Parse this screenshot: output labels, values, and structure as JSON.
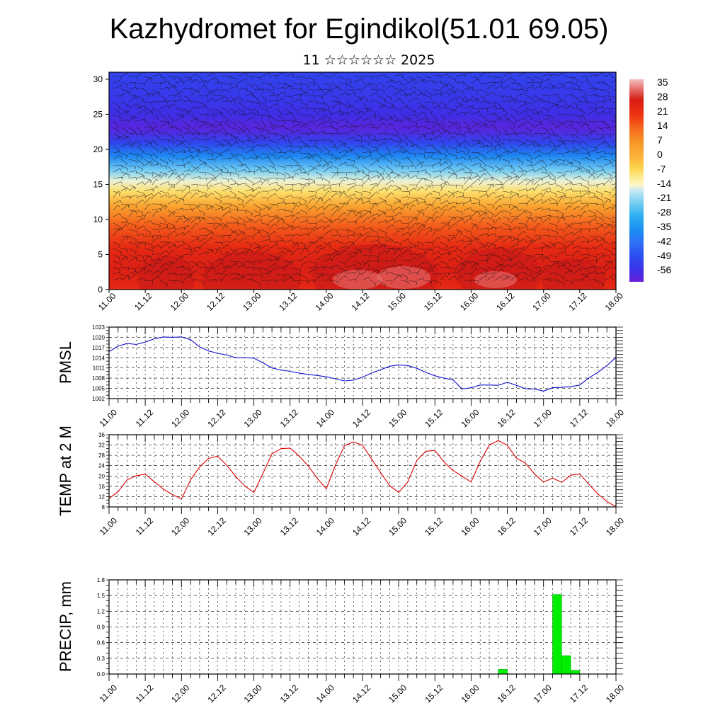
{
  "header": {
    "title": "Kazhydromet for Egindikol(51.01 69.05)",
    "subtitle": "11 ☆☆☆☆☆☆ 2025"
  },
  "time_labels": [
    "11.00",
    "11.12",
    "12.00",
    "12.12",
    "13.00",
    "13.12",
    "14.00",
    "14.12",
    "15.00",
    "15.12",
    "16.00",
    "16.12",
    "17.00",
    "17.12",
    "18.00"
  ],
  "chart_data": [
    {
      "type": "heatmap",
      "name": "cross-section",
      "x_tick_labels": [
        "11.00",
        "11.12",
        "12.00",
        "12.12",
        "13.00",
        "13.12",
        "14.00",
        "14.12",
        "15.00",
        "15.12",
        "16.00",
        "16.12",
        "17.00",
        "17.12",
        "18.00"
      ],
      "y_ticks": [
        0,
        5,
        10,
        15,
        20,
        25,
        30
      ],
      "ylim": [
        0,
        31
      ],
      "colorbar_ticks": [
        35,
        28,
        21,
        14,
        7,
        0,
        -7,
        -14,
        -21,
        -28,
        -35,
        -42,
        -49,
        -56
      ],
      "colorbar_range": [
        -60,
        38
      ],
      "vertical_profile": [
        {
          "z": 0,
          "t": 24
        },
        {
          "z": 3,
          "t": 27
        },
        {
          "z": 6,
          "t": 24
        },
        {
          "z": 9,
          "t": 16
        },
        {
          "z": 12,
          "t": 4
        },
        {
          "z": 14,
          "t": -7
        },
        {
          "z": 15.5,
          "t": -14
        },
        {
          "z": 17,
          "t": -22
        },
        {
          "z": 19,
          "t": -36
        },
        {
          "z": 21,
          "t": -50
        },
        {
          "z": 23,
          "t": -58
        },
        {
          "z": 25,
          "t": -55
        },
        {
          "z": 28,
          "t": -52
        },
        {
          "z": 31,
          "t": -50
        }
      ]
    },
    {
      "type": "line",
      "name": "pmsl",
      "ylabel": "PMSL",
      "color": "#1111cc",
      "ylim": [
        1002,
        1023
      ],
      "y_ticks": [
        1002,
        1005,
        1008,
        1011,
        1014,
        1017,
        1020,
        1023
      ],
      "x_hours": [
        0,
        3,
        6,
        9,
        12,
        15,
        18,
        21,
        24,
        27,
        30,
        33,
        36,
        39,
        42,
        45,
        48,
        51,
        54,
        57,
        60,
        63,
        66,
        69,
        72,
        75,
        78,
        81,
        84,
        87,
        90,
        93,
        96,
        99,
        102,
        105,
        108,
        111,
        114,
        117,
        120,
        123,
        126,
        129,
        132,
        135,
        138,
        141,
        144,
        147,
        150,
        153,
        156,
        159,
        162,
        165,
        168
      ],
      "values": [
        1015.8,
        1017.4,
        1018.2,
        1017.9,
        1018.6,
        1019.6,
        1020.1,
        1020.0,
        1020.1,
        1019.3,
        1017.2,
        1016.0,
        1015.3,
        1014.8,
        1014.0,
        1014.0,
        1013.9,
        1012.5,
        1011.0,
        1010.4,
        1010.0,
        1009.5,
        1009.1,
        1008.8,
        1008.4,
        1007.8,
        1007.2,
        1007.4,
        1008.3,
        1009.5,
        1010.5,
        1011.5,
        1011.9,
        1011.7,
        1010.9,
        1009.7,
        1008.7,
        1008.0,
        1007.5,
        1004.8,
        1005.2,
        1006.0,
        1006.0,
        1005.9,
        1006.8,
        1005.9,
        1004.9,
        1004.8,
        1004.2,
        1005.2,
        1005.3,
        1005.5,
        1006.0,
        1008.1,
        1009.7,
        1011.7,
        1014.1
      ]
    },
    {
      "type": "line",
      "name": "temp",
      "ylabel": "TEMP at 2 M",
      "color": "#dd0000",
      "ylim": [
        8,
        36
      ],
      "y_ticks": [
        8,
        12,
        16,
        20,
        24,
        28,
        32,
        36
      ],
      "x_hours": [
        0,
        3,
        6,
        9,
        12,
        15,
        18,
        21,
        24,
        27,
        30,
        33,
        36,
        39,
        42,
        45,
        48,
        51,
        54,
        57,
        60,
        63,
        66,
        69,
        72,
        75,
        78,
        81,
        84,
        87,
        90,
        93,
        96,
        99,
        102,
        105,
        108,
        111,
        114,
        117,
        120,
        123,
        126,
        129,
        132,
        135,
        138,
        141,
        144,
        147,
        150,
        153,
        156,
        159,
        162,
        165,
        168
      ],
      "values": [
        11.3,
        13.9,
        18.5,
        20.1,
        20.7,
        17.8,
        14.9,
        12.8,
        11.1,
        18.5,
        23.5,
        26.8,
        27.7,
        24.2,
        19.8,
        16.1,
        13.6,
        21.0,
        28.6,
        30.6,
        30.8,
        27.8,
        23.9,
        19.1,
        15.0,
        24.1,
        31.7,
        33.2,
        31.9,
        26.6,
        21.3,
        16.2,
        13.6,
        17.7,
        26.0,
        29.6,
        29.9,
        25.5,
        22.1,
        19.9,
        17.7,
        25.6,
        32.0,
        33.7,
        31.9,
        26.9,
        25.0,
        20.8,
        17.6,
        19.2,
        17.5,
        20.3,
        20.8,
        16.8,
        13.1,
        10.1,
        8.1
      ]
    },
    {
      "type": "bar",
      "name": "precip",
      "ylabel": "PRECIP, mm",
      "color": "#00ee00",
      "ylim": [
        0,
        1.8
      ],
      "y_ticks": [
        "0.0",
        "0.3",
        "0.6",
        "0.9",
        "1.2",
        "1.5",
        "1.8"
      ],
      "bar_width_hours": 3,
      "bars": [
        {
          "start_hour": 129,
          "value": 0.09
        },
        {
          "start_hour": 147,
          "value": 1.52
        },
        {
          "start_hour": 150,
          "value": 0.35
        },
        {
          "start_hour": 153,
          "value": 0.07
        }
      ]
    }
  ]
}
